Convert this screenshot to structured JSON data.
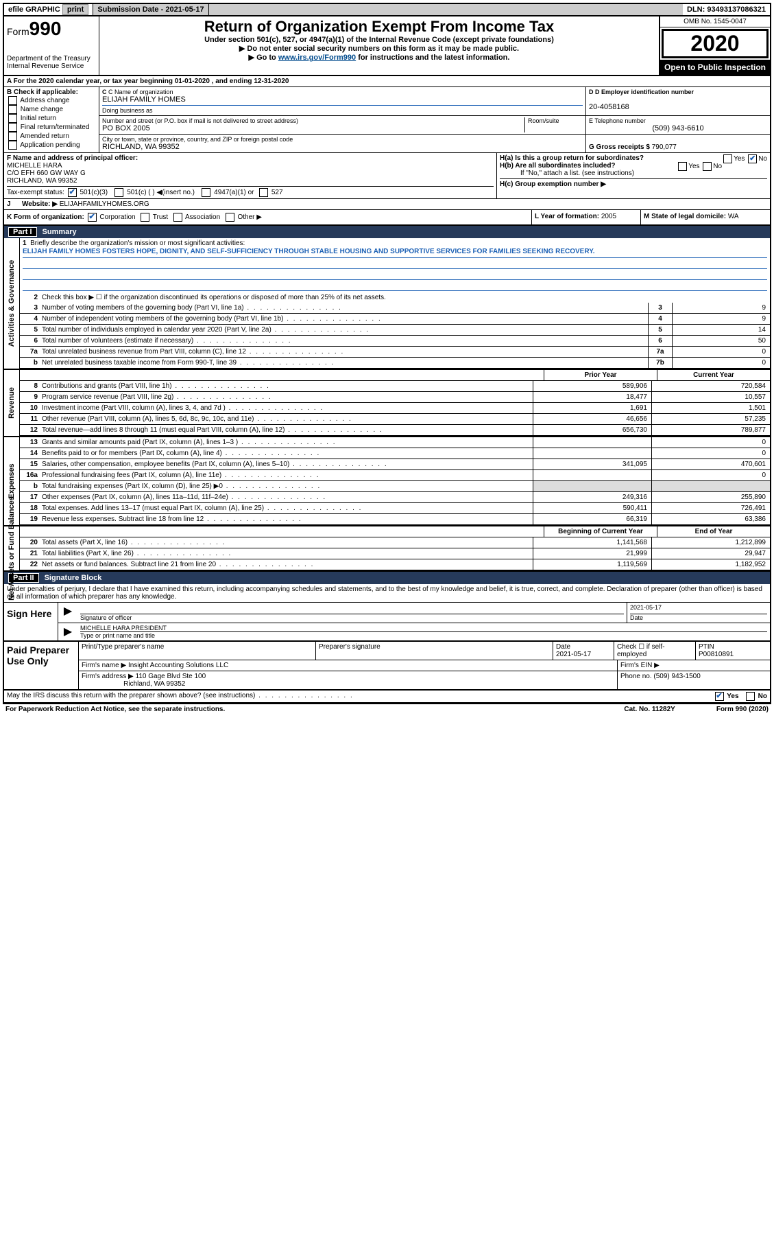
{
  "topbar": {
    "efile": "efile GRAPHIC",
    "print": "print",
    "sub_label": "Submission Date - 2021-05-17",
    "dln": "DLN: 93493137086321"
  },
  "header": {
    "form_prefix": "Form",
    "form_number": "990",
    "title": "Return of Organization Exempt From Income Tax",
    "subtitle1": "Under section 501(c), 527, or 4947(a)(1) of the Internal Revenue Code (except private foundations)",
    "subtitle2": "Do not enter social security numbers on this form as it may be made public.",
    "subtitle3_pre": "Go to ",
    "subtitle3_link": "www.irs.gov/Form990",
    "subtitle3_post": " for instructions and the latest information.",
    "dept1": "Department of the Treasury",
    "dept2": "Internal Revenue Service",
    "omb": "OMB No. 1545-0047",
    "year": "2020",
    "inspection": "Open to Public Inspection"
  },
  "section_a": "A For the 2020 calendar year, or tax year beginning 01-01-2020   , and ending 12-31-2020",
  "col_b": {
    "label": "B Check if applicable:",
    "items": [
      "Address change",
      "Name change",
      "Initial return",
      "Final return/terminated",
      "Amended return",
      "Application pending"
    ]
  },
  "col_c": {
    "name_label": "C Name of organization",
    "name": "ELIJAH FAMILY HOMES",
    "dba_label": "Doing business as",
    "addr_label": "Number and street (or P.O. box if mail is not delivered to street address)",
    "room_label": "Room/suite",
    "addr": "PO BOX 2005",
    "city_label": "City or town, state or province, country, and ZIP or foreign postal code",
    "city": "RICHLAND, WA  99352"
  },
  "col_d": {
    "ein_label": "D Employer identification number",
    "ein": "20-4058168",
    "phone_label": "E Telephone number",
    "phone": "(509) 943-6610",
    "gross_label": "G Gross receipts $",
    "gross": "790,077"
  },
  "col_f": {
    "label": "F  Name and address of principal officer:",
    "name": "MICHELLE HARA",
    "addr1": "C/O EFH 660 GW WAY G",
    "addr2": "RICHLAND, WA  99352"
  },
  "col_h": {
    "ha": "H(a)  Is this a group return for subordinates?",
    "hb": "H(b)  Are all subordinates included?",
    "hb_note": "If \"No,\" attach a list. (see instructions)",
    "hc": "H(c)  Group exemption number ▶",
    "yes": "Yes",
    "no": "No"
  },
  "row_i": {
    "label": "Tax-exempt status:",
    "opts": [
      "501(c)(3)",
      "501(c) (  ) ◀(insert no.)",
      "4947(a)(1) or",
      "527"
    ]
  },
  "row_j": {
    "label": "J",
    "text": "Website: ▶",
    "val": "ELIJAHFAMILYHOMES.ORG"
  },
  "row_k": {
    "label": "K Form of organization:",
    "opts": [
      "Corporation",
      "Trust",
      "Association",
      "Other ▶"
    ],
    "l_label": "L Year of formation:",
    "l_val": "2005",
    "m_label": "M State of legal domicile:",
    "m_val": "WA"
  },
  "parts": {
    "p1": "Part I",
    "p1_title": "Summary",
    "p2": "Part II",
    "p2_title": "Signature Block"
  },
  "vlabels": {
    "gov": "Activities & Governance",
    "rev": "Revenue",
    "exp": "Expenses",
    "net": "Net Assets or Fund Balances"
  },
  "line1": {
    "num": "1",
    "label": "Briefly describe the organization's mission or most significant activities:",
    "text": "ELIJAH FAMILY HOMES FOSTERS HOPE, DIGNITY, AND SELF-SUFFICIENCY THROUGH STABLE HOUSING AND SUPPORTIVE SERVICES FOR FAMILIES SEEKING RECOVERY."
  },
  "line2": {
    "num": "2",
    "text": "Check this box ▶ ☐ if the organization discontinued its operations or disposed of more than 25% of its net assets."
  },
  "gov_lines": [
    {
      "num": "3",
      "text": "Number of voting members of the governing body (Part VI, line 1a)",
      "box": "3",
      "val": "9"
    },
    {
      "num": "4",
      "text": "Number of independent voting members of the governing body (Part VI, line 1b)",
      "box": "4",
      "val": "9"
    },
    {
      "num": "5",
      "text": "Total number of individuals employed in calendar year 2020 (Part V, line 2a)",
      "box": "5",
      "val": "14"
    },
    {
      "num": "6",
      "text": "Total number of volunteers (estimate if necessary)",
      "box": "6",
      "val": "50"
    },
    {
      "num": "7a",
      "text": "Total unrelated business revenue from Part VIII, column (C), line 12",
      "box": "7a",
      "val": "0"
    },
    {
      "num": "b",
      "text": "Net unrelated business taxable income from Form 990-T, line 39",
      "box": "7b",
      "val": "0"
    }
  ],
  "colhdr": {
    "py": "Prior Year",
    "cy": "Current Year"
  },
  "rev_lines": [
    {
      "num": "8",
      "text": "Contributions and grants (Part VIII, line 1h)",
      "py": "589,906",
      "cy": "720,584"
    },
    {
      "num": "9",
      "text": "Program service revenue (Part VIII, line 2g)",
      "py": "18,477",
      "cy": "10,557"
    },
    {
      "num": "10",
      "text": "Investment income (Part VIII, column (A), lines 3, 4, and 7d )",
      "py": "1,691",
      "cy": "1,501"
    },
    {
      "num": "11",
      "text": "Other revenue (Part VIII, column (A), lines 5, 6d, 8c, 9c, 10c, and 11e)",
      "py": "46,656",
      "cy": "57,235"
    },
    {
      "num": "12",
      "text": "Total revenue—add lines 8 through 11 (must equal Part VIII, column (A), line 12)",
      "py": "656,730",
      "cy": "789,877"
    }
  ],
  "exp_lines": [
    {
      "num": "13",
      "text": "Grants and similar amounts paid (Part IX, column (A), lines 1–3 )",
      "py": "",
      "cy": "0"
    },
    {
      "num": "14",
      "text": "Benefits paid to or for members (Part IX, column (A), line 4)",
      "py": "",
      "cy": "0"
    },
    {
      "num": "15",
      "text": "Salaries, other compensation, employee benefits (Part IX, column (A), lines 5–10)",
      "py": "341,095",
      "cy": "470,601"
    },
    {
      "num": "16a",
      "text": "Professional fundraising fees (Part IX, column (A), line 11e)",
      "py": "",
      "cy": "0"
    },
    {
      "num": "b",
      "text": "Total fundraising expenses (Part IX, column (D), line 25) ▶0",
      "py": "SHADE",
      "cy": "SHADE"
    },
    {
      "num": "17",
      "text": "Other expenses (Part IX, column (A), lines 11a–11d, 11f–24e)",
      "py": "249,316",
      "cy": "255,890"
    },
    {
      "num": "18",
      "text": "Total expenses. Add lines 13–17 (must equal Part IX, column (A), line 25)",
      "py": "590,411",
      "cy": "726,491"
    },
    {
      "num": "19",
      "text": "Revenue less expenses. Subtract line 18 from line 12",
      "py": "66,319",
      "cy": "63,386"
    }
  ],
  "net_hdr": {
    "bcy": "Beginning of Current Year",
    "eoy": "End of Year"
  },
  "net_lines": [
    {
      "num": "20",
      "text": "Total assets (Part X, line 16)",
      "py": "1,141,568",
      "cy": "1,212,899"
    },
    {
      "num": "21",
      "text": "Total liabilities (Part X, line 26)",
      "py": "21,999",
      "cy": "29,947"
    },
    {
      "num": "22",
      "text": "Net assets or fund balances. Subtract line 21 from line 20",
      "py": "1,119,569",
      "cy": "1,182,952"
    }
  ],
  "sig": {
    "intro": "Under penalties of perjury, I declare that I have examined this return, including accompanying schedules and statements, and to the best of my knowledge and belief, it is true, correct, and complete. Declaration of preparer (other than officer) is based on all information of which preparer has any knowledge.",
    "sign_here": "Sign Here",
    "sig_label": "Signature of officer",
    "date_label": "Date",
    "date": "2021-05-17",
    "name": "MICHELLE HARA  PRESIDENT",
    "name_label": "Type or print name and title"
  },
  "prep": {
    "title": "Paid Preparer Use Only",
    "h_name": "Print/Type preparer's name",
    "h_sig": "Preparer's signature",
    "h_date": "Date",
    "date": "2021-05-17",
    "h_check": "Check ☐ if self-employed",
    "h_ptin": "PTIN",
    "ptin": "P00810891",
    "firm_label": "Firm's name   ▶",
    "firm": "Insight Accounting Solutions LLC",
    "ein_label": "Firm's EIN ▶",
    "addr_label": "Firm's address ▶",
    "addr1": "110 Gage Blvd Ste 100",
    "addr2": "Richland, WA  99352",
    "phone_label": "Phone no.",
    "phone": "(509) 943-1500"
  },
  "discuss": {
    "text": "May the IRS discuss this return with the preparer shown above? (see instructions)",
    "yes": "Yes",
    "no": "No"
  },
  "footer": {
    "left": "For Paperwork Reduction Act Notice, see the separate instructions.",
    "mid": "Cat. No. 11282Y",
    "right": "Form 990 (2020)"
  }
}
